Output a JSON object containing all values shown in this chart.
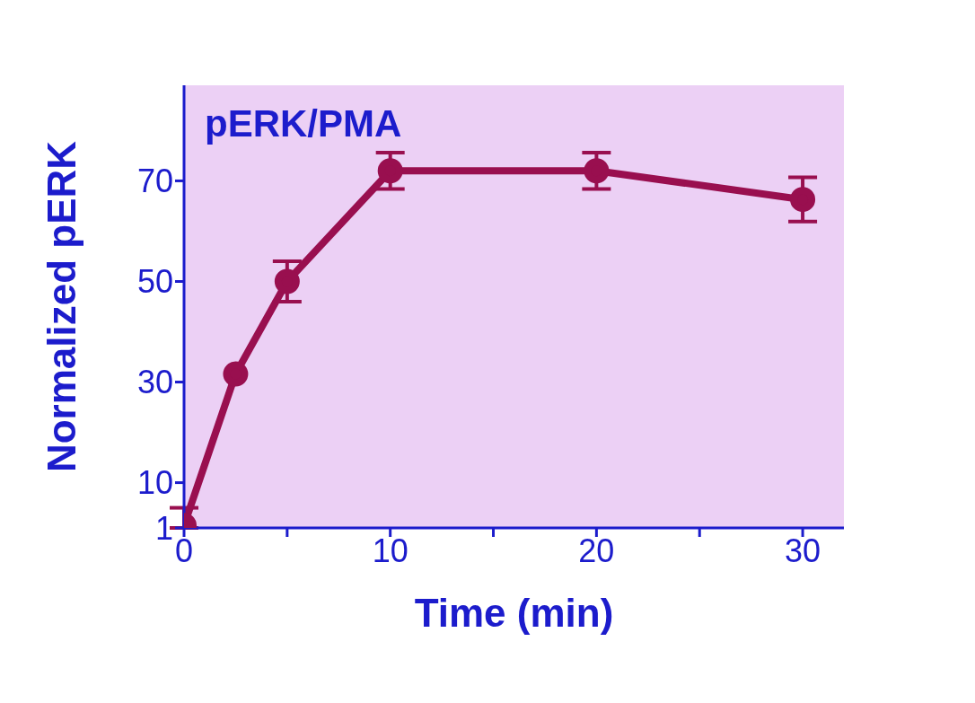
{
  "chart_data": {
    "type": "line",
    "title": "pERK/PMA",
    "xlabel": "Time (min)",
    "ylabel": "Normalized pERK",
    "x": [
      0,
      2.5,
      5,
      10,
      20,
      30
    ],
    "series": [
      {
        "color": "#990f4f",
        "values": [
          1.5,
          31.6,
          50,
          72,
          72,
          66.3
        ],
        "errors": [
          [
            1,
            5
          ],
          null,
          4,
          3.6,
          3.6,
          4.4
        ]
      }
    ],
    "xlim": [
      0,
      32
    ],
    "xticks": [
      0,
      {
        "value": 5,
        "label": null
      },
      10,
      {
        "value": 15,
        "label": null
      },
      20,
      {
        "value": 25,
        "label": null
      },
      30
    ],
    "ylim": [
      1,
      89
    ],
    "yticks": [
      1,
      10,
      30,
      50,
      70
    ],
    "grid": false,
    "legend": false,
    "marker": "circle",
    "line_style": "solid"
  }
}
